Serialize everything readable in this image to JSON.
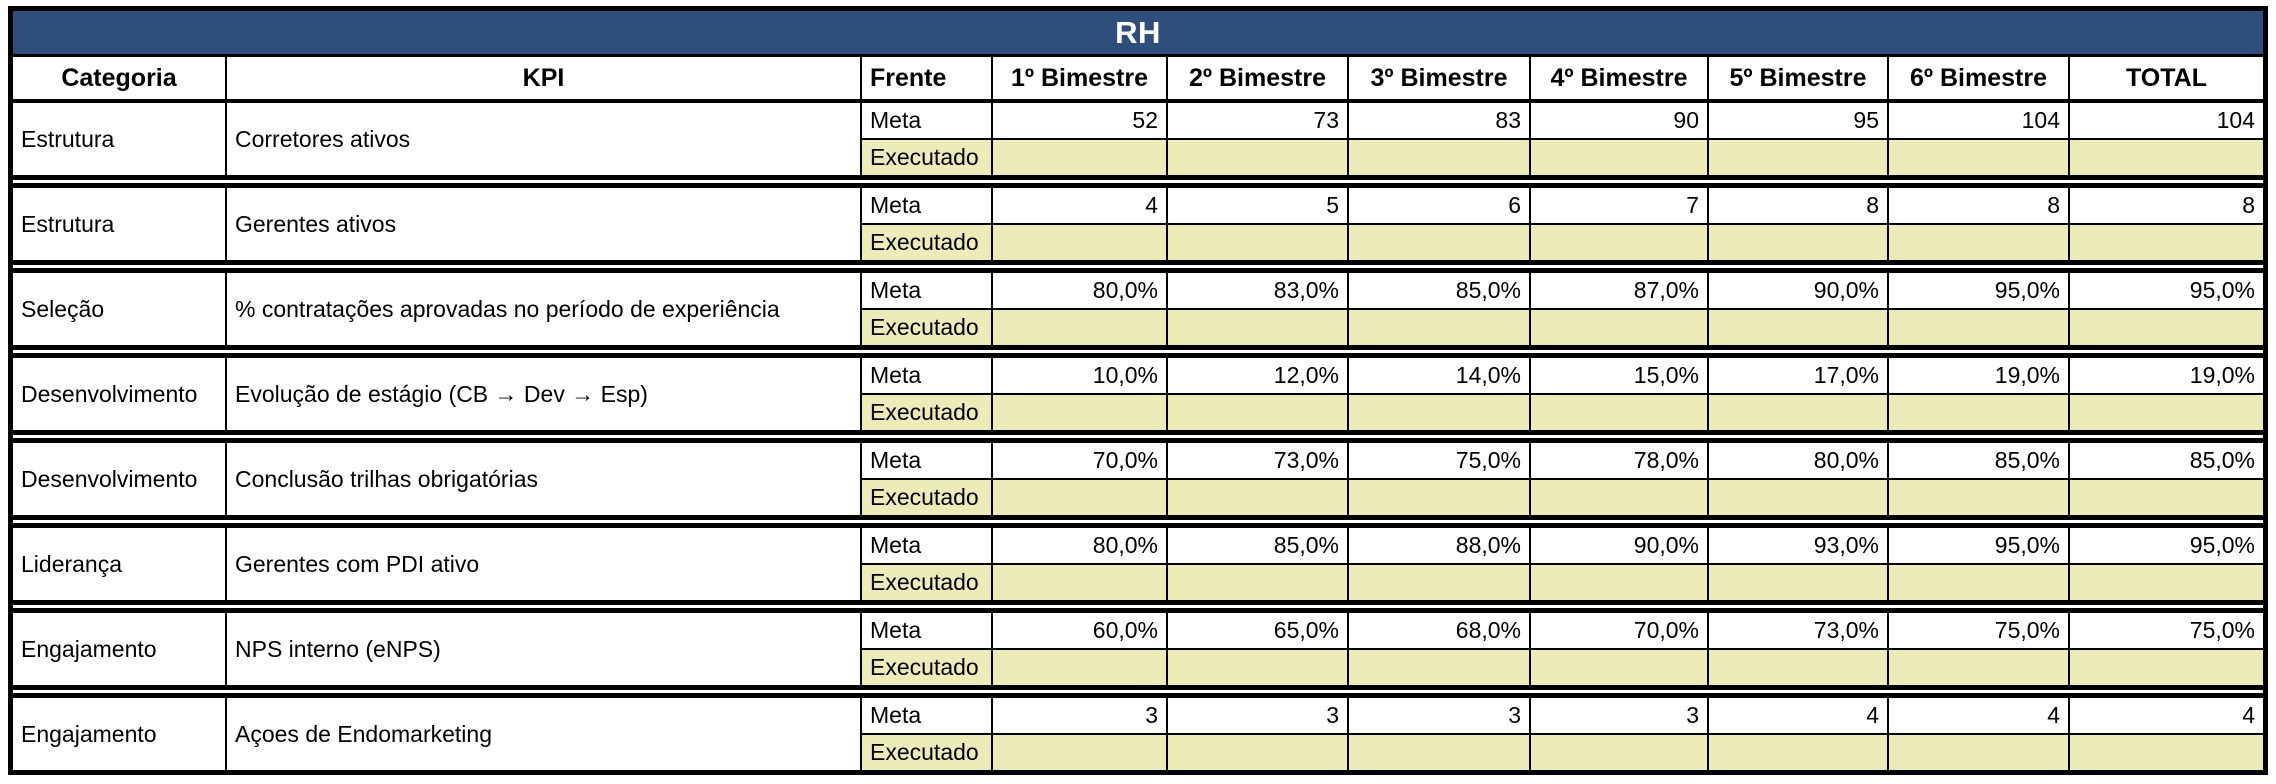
{
  "title": "RH",
  "labels": {
    "meta": "Meta",
    "executado": "Executado"
  },
  "columns": [
    "Categoria",
    "KPI",
    "Frente",
    "1º Bimestre",
    "2º Bimestre",
    "3º Bimestre",
    "4º Bimestre",
    "5º Bimestre",
    "6º Bimestre",
    "TOTAL"
  ],
  "colors": {
    "title_bg": "#2F4E7C",
    "title_text": "#FFFFFF",
    "executado_bg": "#EBECB8",
    "border": "#000000"
  },
  "rows": [
    {
      "categoria": "Estrutura",
      "kpi": "Corretores ativos",
      "meta": [
        "52",
        "73",
        "83",
        "90",
        "95",
        "104",
        "104"
      ],
      "executado": [
        "",
        "",
        "",
        "",
        "",
        "",
        ""
      ]
    },
    {
      "categoria": "Estrutura",
      "kpi": "Gerentes ativos",
      "meta": [
        "4",
        "5",
        "6",
        "7",
        "8",
        "8",
        "8"
      ],
      "executado": [
        "",
        "",
        "",
        "",
        "",
        "",
        ""
      ]
    },
    {
      "categoria": "Seleção",
      "kpi": "% contratações aprovadas no período de experiência",
      "meta": [
        "80,0%",
        "83,0%",
        "85,0%",
        "87,0%",
        "90,0%",
        "95,0%",
        "95,0%"
      ],
      "executado": [
        "",
        "",
        "",
        "",
        "",
        "",
        ""
      ]
    },
    {
      "categoria": "Desenvolvimento",
      "kpi": "Evolução de estágio (CB → Dev → Esp)",
      "meta": [
        "10,0%",
        "12,0%",
        "14,0%",
        "15,0%",
        "17,0%",
        "19,0%",
        "19,0%"
      ],
      "executado": [
        "",
        "",
        "",
        "",
        "",
        "",
        ""
      ]
    },
    {
      "categoria": "Desenvolvimento",
      "kpi": "Conclusão trilhas obrigatórias",
      "meta": [
        "70,0%",
        "73,0%",
        "75,0%",
        "78,0%",
        "80,0%",
        "85,0%",
        "85,0%"
      ],
      "executado": [
        "",
        "",
        "",
        "",
        "",
        "",
        ""
      ]
    },
    {
      "categoria": "Liderança",
      "kpi": "Gerentes com PDI ativo",
      "meta": [
        "80,0%",
        "85,0%",
        "88,0%",
        "90,0%",
        "93,0%",
        "95,0%",
        "95,0%"
      ],
      "executado": [
        "",
        "",
        "",
        "",
        "",
        "",
        ""
      ]
    },
    {
      "categoria": "Engajamento",
      "kpi": "NPS interno (eNPS)",
      "meta": [
        "60,0%",
        "65,0%",
        "68,0%",
        "70,0%",
        "73,0%",
        "75,0%",
        "75,0%"
      ],
      "executado": [
        "",
        "",
        "",
        "",
        "",
        "",
        ""
      ]
    },
    {
      "categoria": "Engajamento",
      "kpi": "Açoes de Endomarketing",
      "meta": [
        "3",
        "3",
        "3",
        "3",
        "4",
        "4",
        "4"
      ],
      "executado": [
        "",
        "",
        "",
        "",
        "",
        "",
        ""
      ]
    }
  ]
}
